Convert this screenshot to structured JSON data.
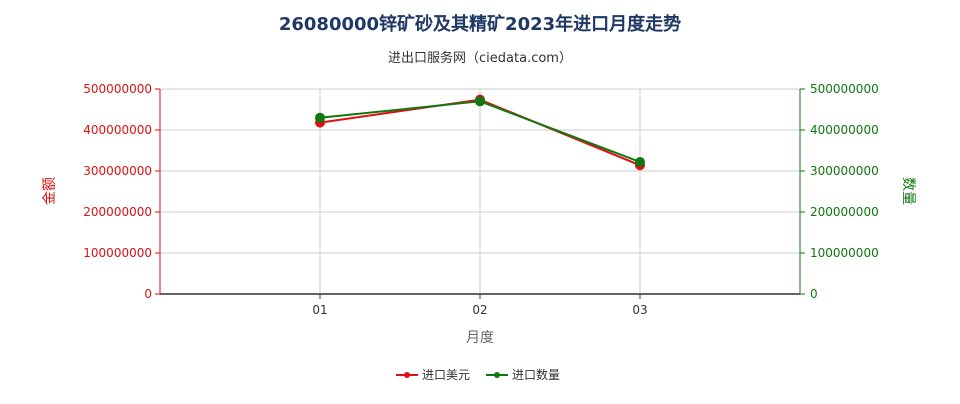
{
  "chart_data": {
    "type": "line",
    "title": "26080000锌矿砂及其精矿2023年进口月度走势",
    "subtitle": "进出口服务网（ciedata.com）",
    "xlabel": "月度",
    "ylabel_left": "金额",
    "ylabel_right": "数量",
    "categories": [
      "01",
      "02",
      "03"
    ],
    "ylim": [
      0,
      500000000
    ],
    "yticks": [
      "0",
      "100000000",
      "200000000",
      "300000000",
      "400000000",
      "500000000"
    ],
    "grid": true,
    "legend_position": "bottom-center",
    "series": [
      {
        "name": "进口美元",
        "axis": "left",
        "color": "#dd1111",
        "values": [
          418000000,
          474000000,
          314000000
        ]
      },
      {
        "name": "进口数量",
        "axis": "right",
        "color": "#117711",
        "values": [
          430000000,
          470000000,
          322000000
        ]
      }
    ]
  },
  "colors": {
    "title": "#1f3864",
    "left_axis": "#dd1111",
    "right_axis": "#117711",
    "grid": "#cccccc",
    "axis_label": "#666666"
  }
}
